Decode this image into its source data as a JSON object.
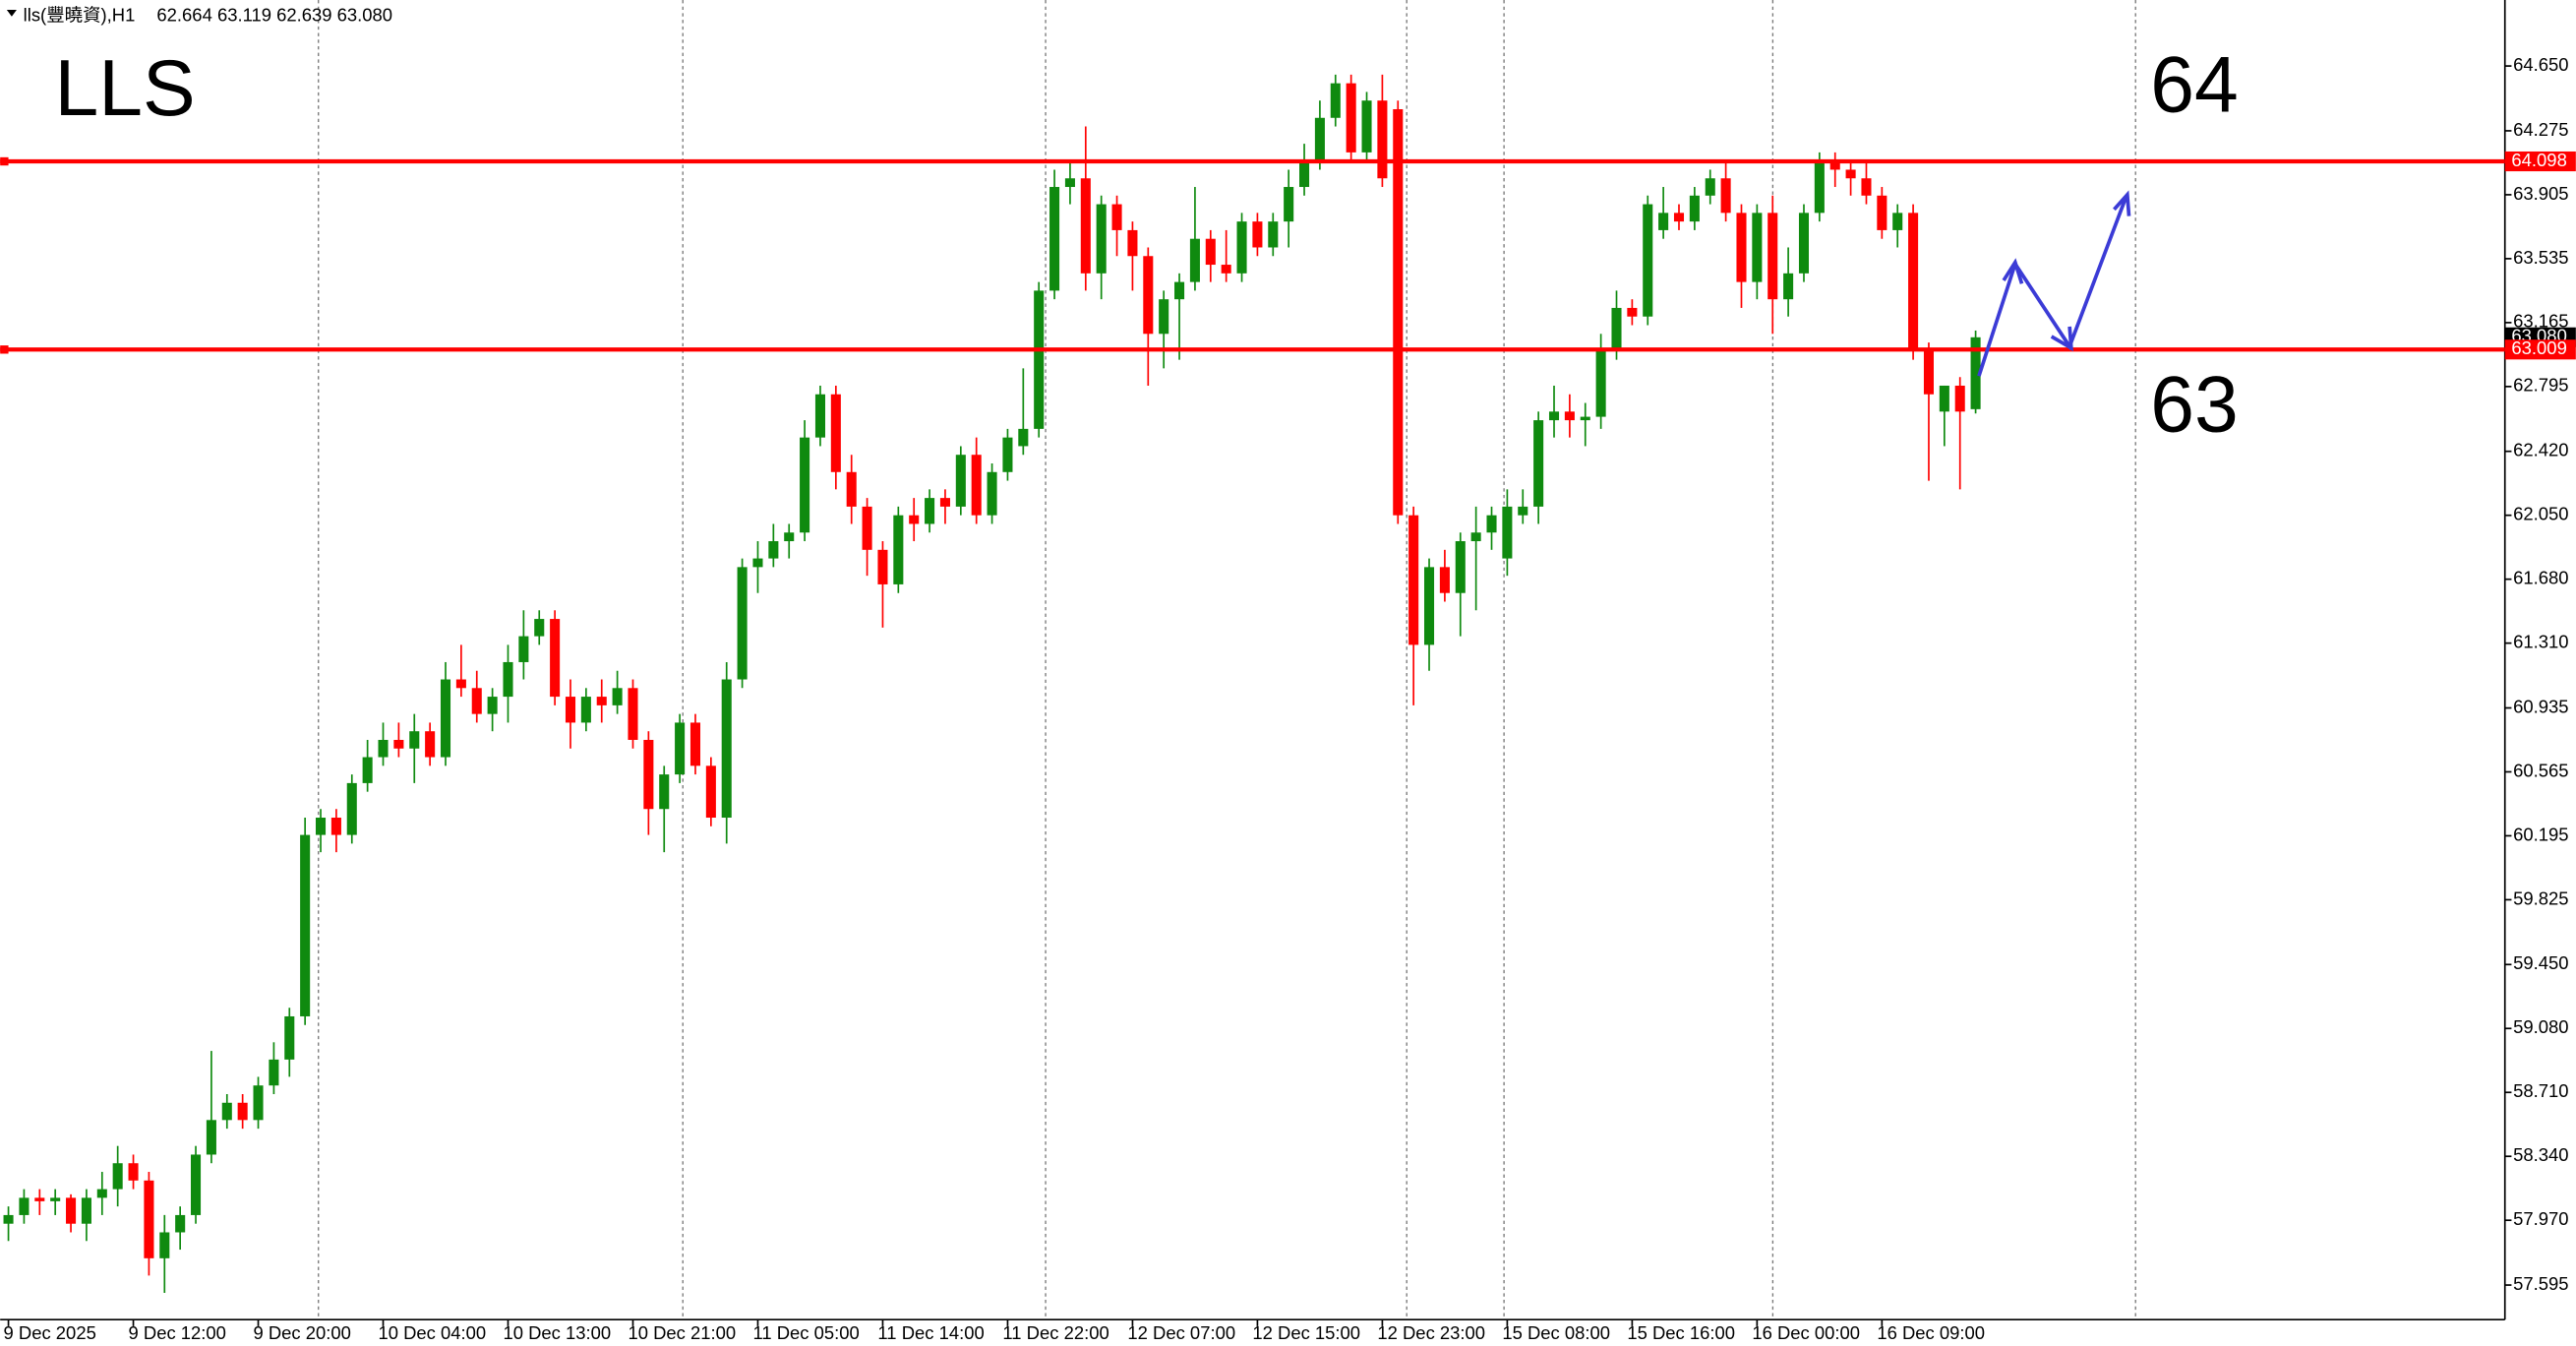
{
  "chart_data": {
    "type": "candlestick",
    "header": "lls(豐曉資),H1",
    "readout": "62.664 63.119 62.639 63.080",
    "annotations": {
      "symbol": "LLS",
      "upper": "64",
      "lower": "63"
    },
    "up_color": "#0f8a0f",
    "down_color": "#ff0000",
    "ylim": [
      57.395,
      65.032
    ],
    "yticks": [
      {
        "value": 64.65,
        "label": "64.650"
      },
      64.275,
      63.905,
      63.535,
      63.165,
      62.795,
      {
        "value": 62.42,
        "label": "62.420"
      },
      {
        "value": 62.05,
        "label": "62.050"
      },
      {
        "value": 61.68,
        "label": "61.680"
      },
      {
        "value": 61.31,
        "label": "61.310"
      },
      60.935,
      60.565,
      60.195,
      59.825,
      {
        "value": 59.45,
        "label": "59.450"
      },
      {
        "value": 59.08,
        "label": "59.080"
      },
      {
        "value": 58.71,
        "label": "58.710"
      },
      {
        "value": 58.34,
        "label": "58.340"
      },
      {
        "value": 57.97,
        "label": "57.970"
      },
      57.595
    ],
    "levels": [
      {
        "value": 64.098,
        "label": "64.098",
        "color": "#ff0000"
      },
      {
        "value": 63.009,
        "label": "63.009",
        "color": "#ff0000"
      }
    ],
    "last_price": {
      "value": 63.08,
      "label": "63.080"
    },
    "categories": [
      "9 Dec 2025",
      null,
      null,
      null,
      null,
      null,
      null,
      null,
      "9 Dec 12:00",
      null,
      null,
      null,
      null,
      null,
      null,
      null,
      "9 Dec 20:00",
      null,
      null,
      null,
      null,
      null,
      null,
      null,
      "10 Dec 04:00",
      null,
      null,
      null,
      null,
      null,
      null,
      null,
      "10 Dec 13:00",
      null,
      null,
      null,
      null,
      null,
      null,
      null,
      "10 Dec 21:00",
      null,
      null,
      null,
      null,
      null,
      null,
      null,
      "11 Dec 05:00",
      null,
      null,
      null,
      null,
      null,
      null,
      null,
      "11 Dec 14:00",
      null,
      null,
      null,
      null,
      null,
      null,
      null,
      "11 Dec 22:00",
      null,
      null,
      null,
      null,
      null,
      null,
      null,
      "12 Dec 07:00",
      null,
      null,
      null,
      null,
      null,
      null,
      null,
      "12 Dec 15:00",
      null,
      null,
      null,
      null,
      null,
      null,
      null,
      "12 Dec 23:00",
      null,
      null,
      null,
      null,
      null,
      null,
      null,
      "15 Dec 08:00",
      null,
      null,
      null,
      null,
      null,
      null,
      null,
      "15 Dec 16:00",
      null,
      null,
      null,
      null,
      null,
      null,
      null,
      "16 Dec 00:00",
      null,
      null,
      null,
      null,
      null,
      null,
      null,
      "16 Dec 09:00",
      null,
      null,
      null,
      null,
      null,
      null
    ],
    "ohlc": [
      [
        57.95,
        58.05,
        57.85,
        58.0
      ],
      [
        58.0,
        58.15,
        57.95,
        58.1
      ],
      [
        58.1,
        58.15,
        58.0,
        58.08
      ],
      [
        58.08,
        58.15,
        58.0,
        58.1
      ],
      [
        58.1,
        58.12,
        57.9,
        57.95
      ],
      [
        57.95,
        58.15,
        57.85,
        58.1
      ],
      [
        58.1,
        58.25,
        58.0,
        58.15
      ],
      [
        58.15,
        58.4,
        58.05,
        58.3
      ],
      [
        58.3,
        58.35,
        58.15,
        58.2
      ],
      [
        58.2,
        58.25,
        57.65,
        57.75
      ],
      [
        57.75,
        58.0,
        57.55,
        57.9
      ],
      [
        57.9,
        58.05,
        57.8,
        58.0
      ],
      [
        58.0,
        58.4,
        57.95,
        58.35
      ],
      [
        58.35,
        58.95,
        58.3,
        58.55
      ],
      [
        58.55,
        58.7,
        58.5,
        58.65
      ],
      [
        58.65,
        58.7,
        58.5,
        58.55
      ],
      [
        58.55,
        58.8,
        58.5,
        58.75
      ],
      [
        58.75,
        59.0,
        58.7,
        58.9
      ],
      [
        58.9,
        59.2,
        58.8,
        59.15
      ],
      [
        59.15,
        60.3,
        59.1,
        60.2
      ],
      [
        60.2,
        60.35,
        60.1,
        60.3
      ],
      [
        60.3,
        60.35,
        60.1,
        60.2
      ],
      [
        60.2,
        60.55,
        60.15,
        60.5
      ],
      [
        60.5,
        60.75,
        60.45,
        60.65
      ],
      [
        60.65,
        60.85,
        60.6,
        60.75
      ],
      [
        60.75,
        60.85,
        60.65,
        60.7
      ],
      [
        60.7,
        60.9,
        60.5,
        60.8
      ],
      [
        60.8,
        60.85,
        60.6,
        60.65
      ],
      [
        60.65,
        61.2,
        60.6,
        61.1
      ],
      [
        61.1,
        61.3,
        61.0,
        61.05
      ],
      [
        61.05,
        61.15,
        60.85,
        60.9
      ],
      [
        60.9,
        61.05,
        60.8,
        61.0
      ],
      [
        61.0,
        61.3,
        60.85,
        61.2
      ],
      [
        61.2,
        61.5,
        61.1,
        61.35
      ],
      [
        61.35,
        61.5,
        61.3,
        61.45
      ],
      [
        61.45,
        61.5,
        60.95,
        61.0
      ],
      [
        61.0,
        61.1,
        60.7,
        60.85
      ],
      [
        60.85,
        61.05,
        60.8,
        61.0
      ],
      [
        61.0,
        61.1,
        60.85,
        60.95
      ],
      [
        60.95,
        61.15,
        60.9,
        61.05
      ],
      [
        61.05,
        61.1,
        60.7,
        60.75
      ],
      [
        60.75,
        60.8,
        60.2,
        60.35
      ],
      [
        60.35,
        60.6,
        60.1,
        60.55
      ],
      [
        60.55,
        60.9,
        60.5,
        60.85
      ],
      [
        60.85,
        60.9,
        60.55,
        60.6
      ],
      [
        60.6,
        60.65,
        60.25,
        60.3
      ],
      [
        60.3,
        61.2,
        60.15,
        61.1
      ],
      [
        61.1,
        61.8,
        61.05,
        61.75
      ],
      [
        61.75,
        61.9,
        61.6,
        61.8
      ],
      [
        61.8,
        62.0,
        61.75,
        61.9
      ],
      [
        61.9,
        62.0,
        61.8,
        61.95
      ],
      [
        61.95,
        62.6,
        61.9,
        62.5
      ],
      [
        62.5,
        62.8,
        62.45,
        62.75
      ],
      [
        62.75,
        62.8,
        62.2,
        62.3
      ],
      [
        62.3,
        62.4,
        62.0,
        62.1
      ],
      [
        62.1,
        62.15,
        61.7,
        61.85
      ],
      [
        61.85,
        61.9,
        61.4,
        61.65
      ],
      [
        61.65,
        62.1,
        61.6,
        62.05
      ],
      [
        62.05,
        62.15,
        61.9,
        62.0
      ],
      [
        62.0,
        62.2,
        61.95,
        62.15
      ],
      [
        62.15,
        62.2,
        62.0,
        62.1
      ],
      [
        62.1,
        62.45,
        62.05,
        62.4
      ],
      [
        62.4,
        62.5,
        62.0,
        62.05
      ],
      [
        62.05,
        62.35,
        62.0,
        62.3
      ],
      [
        62.3,
        62.55,
        62.25,
        62.5
      ],
      [
        62.45,
        62.9,
        62.4,
        62.55
      ],
      [
        62.55,
        63.4,
        62.5,
        63.35
      ],
      [
        63.35,
        64.05,
        63.3,
        63.95
      ],
      [
        63.95,
        64.1,
        63.85,
        64.0
      ],
      [
        64.0,
        64.3,
        63.35,
        63.45
      ],
      [
        63.45,
        63.9,
        63.3,
        63.85
      ],
      [
        63.85,
        63.9,
        63.55,
        63.7
      ],
      [
        63.7,
        63.75,
        63.35,
        63.55
      ],
      [
        63.55,
        63.6,
        62.8,
        63.1
      ],
      [
        63.1,
        63.35,
        62.9,
        63.3
      ],
      [
        63.3,
        63.45,
        62.95,
        63.4
      ],
      [
        63.4,
        63.95,
        63.35,
        63.65
      ],
      [
        63.65,
        63.7,
        63.4,
        63.5
      ],
      [
        63.5,
        63.7,
        63.4,
        63.45
      ],
      [
        63.45,
        63.8,
        63.4,
        63.75
      ],
      [
        63.75,
        63.8,
        63.55,
        63.6
      ],
      [
        63.6,
        63.8,
        63.55,
        63.75
      ],
      [
        63.75,
        64.05,
        63.6,
        63.95
      ],
      [
        63.95,
        64.2,
        63.9,
        64.1
      ],
      [
        64.1,
        64.45,
        64.05,
        64.35
      ],
      [
        64.35,
        64.6,
        64.3,
        64.55
      ],
      [
        64.55,
        64.6,
        64.1,
        64.15
      ],
      [
        64.15,
        64.5,
        64.1,
        64.45
      ],
      [
        64.45,
        64.6,
        63.95,
        64.0
      ],
      [
        64.4,
        64.45,
        62.0,
        62.05
      ],
      [
        62.05,
        62.1,
        60.95,
        61.3
      ],
      [
        61.3,
        61.8,
        61.15,
        61.75
      ],
      [
        61.75,
        61.85,
        61.55,
        61.6
      ],
      [
        61.6,
        61.95,
        61.35,
        61.9
      ],
      [
        61.9,
        62.1,
        61.5,
        61.95
      ],
      [
        61.95,
        62.1,
        61.85,
        62.05
      ],
      [
        61.8,
        62.2,
        61.7,
        62.1
      ],
      [
        62.05,
        62.2,
        62.0,
        62.1
      ],
      [
        62.1,
        62.65,
        62.0,
        62.6
      ],
      [
        62.6,
        62.8,
        62.5,
        62.65
      ],
      [
        62.65,
        62.75,
        62.5,
        62.6
      ],
      [
        62.6,
        62.7,
        62.45,
        62.62
      ],
      [
        62.62,
        63.1,
        62.55,
        63.0
      ],
      [
        63.0,
        63.35,
        62.95,
        63.25
      ],
      [
        63.25,
        63.3,
        63.15,
        63.2
      ],
      [
        63.2,
        63.9,
        63.15,
        63.85
      ],
      [
        63.7,
        63.95,
        63.65,
        63.8
      ],
      [
        63.8,
        63.85,
        63.7,
        63.75
      ],
      [
        63.75,
        63.95,
        63.7,
        63.9
      ],
      [
        63.9,
        64.05,
        63.85,
        64.0
      ],
      [
        64.0,
        64.1,
        63.75,
        63.8
      ],
      [
        63.8,
        63.85,
        63.25,
        63.4
      ],
      [
        63.4,
        63.85,
        63.3,
        63.8
      ],
      [
        63.8,
        63.9,
        63.1,
        63.3
      ],
      [
        63.3,
        63.6,
        63.2,
        63.45
      ],
      [
        63.45,
        63.85,
        63.4,
        63.8
      ],
      [
        63.8,
        64.15,
        63.75,
        64.1
      ],
      [
        64.1,
        64.15,
        63.95,
        64.05
      ],
      [
        64.05,
        64.1,
        63.9,
        64.0
      ],
      [
        64.0,
        64.1,
        63.85,
        63.9
      ],
      [
        63.9,
        63.95,
        63.65,
        63.7
      ],
      [
        63.7,
        63.85,
        63.6,
        63.8
      ],
      [
        63.8,
        63.85,
        62.95,
        63.0
      ],
      [
        63.0,
        63.05,
        62.25,
        62.75
      ],
      [
        62.65,
        62.8,
        62.45,
        62.8
      ],
      [
        62.8,
        62.85,
        62.2,
        62.65
      ],
      [
        62.664,
        63.119,
        62.639,
        63.08
      ]
    ]
  }
}
